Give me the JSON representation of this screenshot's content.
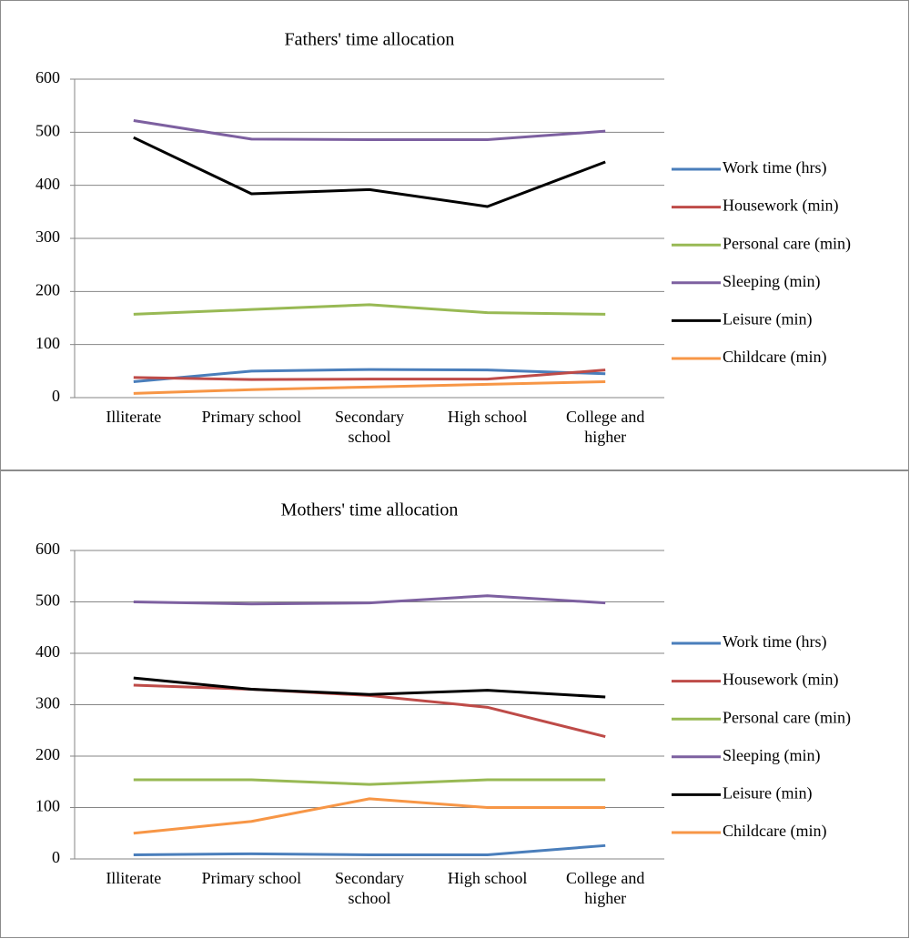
{
  "chart_data": [
    {
      "type": "line",
      "title": "Fathers' time allocation",
      "categories": [
        "Illiterate",
        "Primary school",
        "Secondary school",
        "High school",
        "College and higher"
      ],
      "series": [
        {
          "name": "Work time (hrs)",
          "color": "#4a7ebb",
          "values": [
            30,
            50,
            53,
            52,
            45
          ]
        },
        {
          "name": "Housework (min)",
          "color": "#be4b48",
          "values": [
            38,
            34,
            35,
            35,
            52
          ]
        },
        {
          "name": "Personal care (min)",
          "color": "#98b954",
          "values": [
            157,
            166,
            175,
            160,
            157
          ]
        },
        {
          "name": "Sleeping (min)",
          "color": "#7d60a0",
          "values": [
            522,
            487,
            486,
            486,
            502
          ]
        },
        {
          "name": "Leisure (min)",
          "color": "#000000",
          "values": [
            490,
            384,
            392,
            360,
            444
          ]
        },
        {
          "name": "Childcare (min)",
          "color": "#f79646",
          "values": [
            8,
            15,
            20,
            25,
            30
          ]
        }
      ],
      "ylim": [
        0,
        600
      ],
      "yticks": [
        0,
        100,
        200,
        300,
        400,
        500,
        600
      ],
      "grid": true,
      "legend": "right"
    },
    {
      "type": "line",
      "title": "Mothers' time allocation",
      "categories": [
        "Illiterate",
        "Primary school",
        "Secondary school",
        "High school",
        "College and higher"
      ],
      "series": [
        {
          "name": "Work time (hrs)",
          "color": "#4a7ebb",
          "values": [
            8,
            10,
            8,
            8,
            26
          ]
        },
        {
          "name": "Housework (min)",
          "color": "#be4b48",
          "values": [
            338,
            330,
            318,
            295,
            238
          ]
        },
        {
          "name": "Personal care (min)",
          "color": "#98b954",
          "values": [
            154,
            154,
            145,
            154,
            154
          ]
        },
        {
          "name": "Sleeping (min)",
          "color": "#7d60a0",
          "values": [
            500,
            496,
            498,
            512,
            498
          ]
        },
        {
          "name": "Leisure (min)",
          "color": "#000000",
          "values": [
            352,
            330,
            320,
            328,
            315
          ]
        },
        {
          "name": "Childcare (min)",
          "color": "#f79646",
          "values": [
            50,
            73,
            117,
            100,
            100
          ]
        }
      ],
      "ylim": [
        0,
        600
      ],
      "yticks": [
        0,
        100,
        200,
        300,
        400,
        500,
        600
      ],
      "grid": true,
      "legend": "right"
    }
  ]
}
